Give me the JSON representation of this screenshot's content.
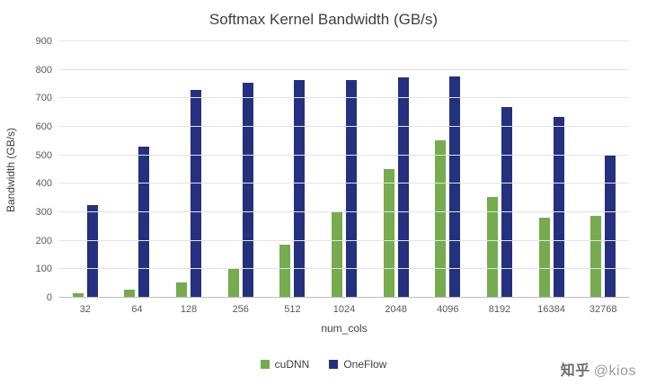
{
  "chart_data": {
    "type": "bar",
    "title": "Softmax Kernel Bandwidth (GB/s)",
    "xlabel": "num_cols",
    "ylabel": "Bandwidth (GB/s)",
    "ylim": [
      0,
      900
    ],
    "ytick_step": 100,
    "grid": true,
    "legend_position": "bottom",
    "categories": [
      "32",
      "64",
      "128",
      "256",
      "512",
      "1024",
      "2048",
      "4096",
      "8192",
      "16384",
      "32768"
    ],
    "series": [
      {
        "name": "cuDNN",
        "color": "#76AB4F",
        "values": [
          15,
          27,
          55,
          103,
          185,
          303,
          452,
          553,
          355,
          281,
          286
        ]
      },
      {
        "name": "OneFlow",
        "color": "#25307E",
        "values": [
          325,
          530,
          730,
          755,
          765,
          765,
          775,
          778,
          670,
          636,
          502
        ]
      }
    ]
  },
  "watermark": {
    "brand": "知乎",
    "handle": "@kios"
  }
}
